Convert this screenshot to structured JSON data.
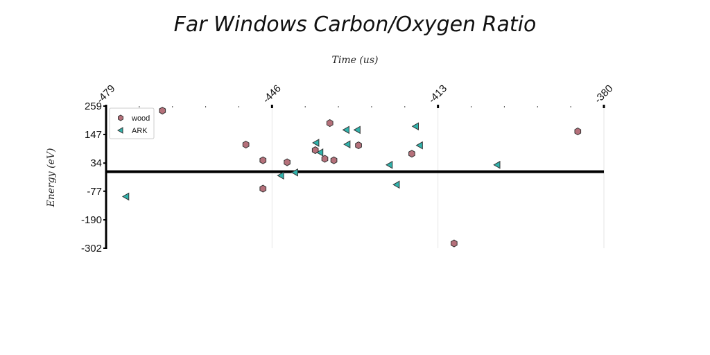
{
  "chart_data": {
    "type": "scatter",
    "title": "Far Windows Carbon/Oxygen Ratio",
    "xlabel": "Time (us)",
    "ylabel": "Energy (eV)",
    "xlim": [
      -479,
      -380
    ],
    "ylim": [
      -302,
      259
    ],
    "x_ticks": [
      -479,
      -446,
      -413,
      -380
    ],
    "y_ticks": [
      259,
      147,
      34,
      -77,
      -190,
      -302
    ],
    "grid": "vertical",
    "legend_position": "top-left",
    "series": [
      {
        "name": "wood",
        "marker": "hexagon",
        "color": "#b5707a",
        "points": [
          [
            -467.8,
            241
          ],
          [
            -451.2,
            107
          ],
          [
            -447.8,
            45
          ],
          [
            -447.8,
            -67
          ],
          [
            -443.0,
            37
          ],
          [
            -437.4,
            85
          ],
          [
            -435.5,
            51
          ],
          [
            -434.5,
            192
          ],
          [
            -433.7,
            45
          ],
          [
            -428.8,
            104
          ],
          [
            -418.2,
            71
          ],
          [
            -409.8,
            -283
          ],
          [
            -385.2,
            159
          ]
        ]
      },
      {
        "name": "ARK",
        "marker": "triangle-left",
        "color": "#30b3ac",
        "points": [
          [
            -475.0,
            -98
          ],
          [
            -444.2,
            -15
          ],
          [
            -441.4,
            -3
          ],
          [
            -437.2,
            114
          ],
          [
            -436.4,
            76
          ],
          [
            -431.2,
            165
          ],
          [
            -431.0,
            108
          ],
          [
            -429.0,
            165
          ],
          [
            -422.6,
            27
          ],
          [
            -421.2,
            -51
          ],
          [
            -417.4,
            179
          ],
          [
            -416.6,
            104
          ],
          [
            -401.2,
            27
          ]
        ]
      }
    ]
  }
}
